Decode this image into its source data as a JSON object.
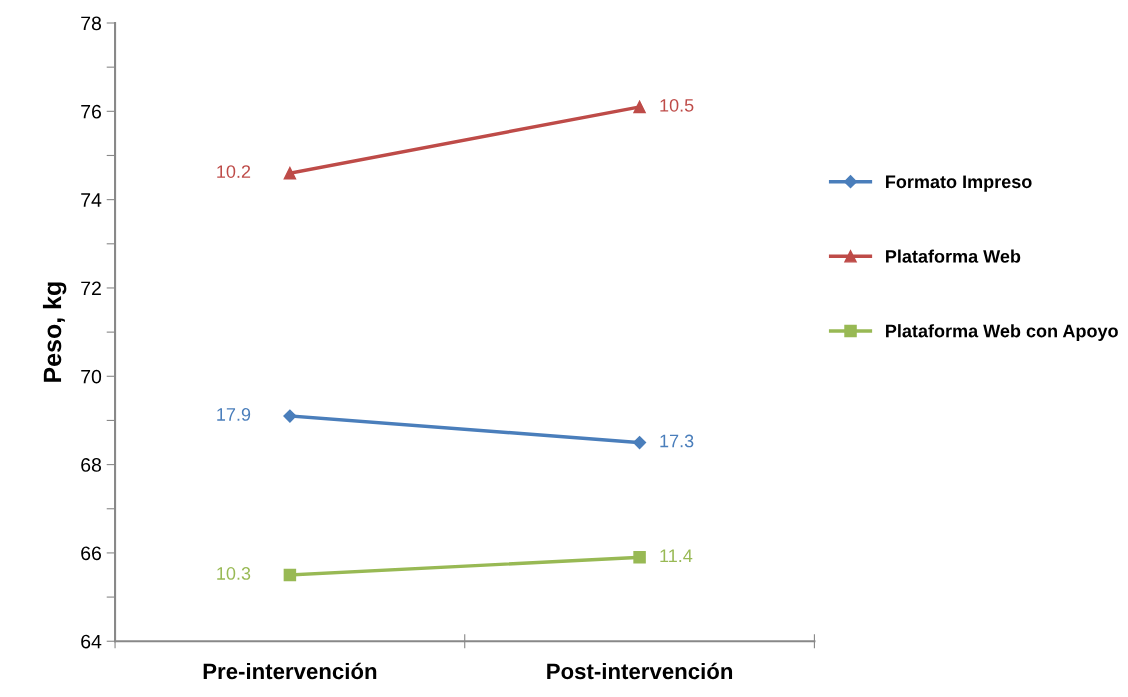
{
  "chart_data": {
    "type": "line",
    "ylabel": "Peso, kg",
    "categories": [
      "Pre-intervención",
      "Post-intervención"
    ],
    "series": [
      {
        "name": "Formato Impreso",
        "color": "#4a7ebb",
        "marker": "diamond",
        "values": [
          69.1,
          68.5
        ]
      },
      {
        "name": "Plataforma Web",
        "color": "#be4b48",
        "marker": "triangle",
        "values": [
          74.6,
          76.1
        ]
      },
      {
        "name": "Plataforma Web con Apoyo",
        "color": "#98b954",
        "marker": "square",
        "values": [
          65.5,
          65.9
        ]
      }
    ],
    "annotations": [
      {
        "text": "17.9",
        "x": "Pre-intervención",
        "y": 69.1
      },
      {
        "text": "17.3",
        "x": "Post-intervención",
        "y": 68.5
      },
      {
        "text": "10.2",
        "x": "Pre-intervención",
        "y": 74.6
      },
      {
        "text": "10.5",
        "x": "Post-intervención",
        "y": 76.1
      },
      {
        "text": "10.3",
        "x": "Pre-intervención",
        "y": 65.5
      },
      {
        "text": "11.4",
        "x": "Post-intervención",
        "y": 65.9
      }
    ],
    "ylim": [
      64,
      78
    ],
    "yticks": [
      64,
      {
        "value": 65,
        "label": null
      },
      66,
      {
        "value": 67,
        "label": null
      },
      68,
      {
        "value": 69,
        "label": null
      },
      70,
      {
        "value": 71,
        "label": null
      },
      72,
      {
        "value": 73,
        "label": null
      },
      74,
      {
        "value": 75,
        "label": null
      },
      76,
      {
        "value": 77,
        "label": null
      },
      78
    ],
    "grid": false,
    "legend": "right"
  }
}
